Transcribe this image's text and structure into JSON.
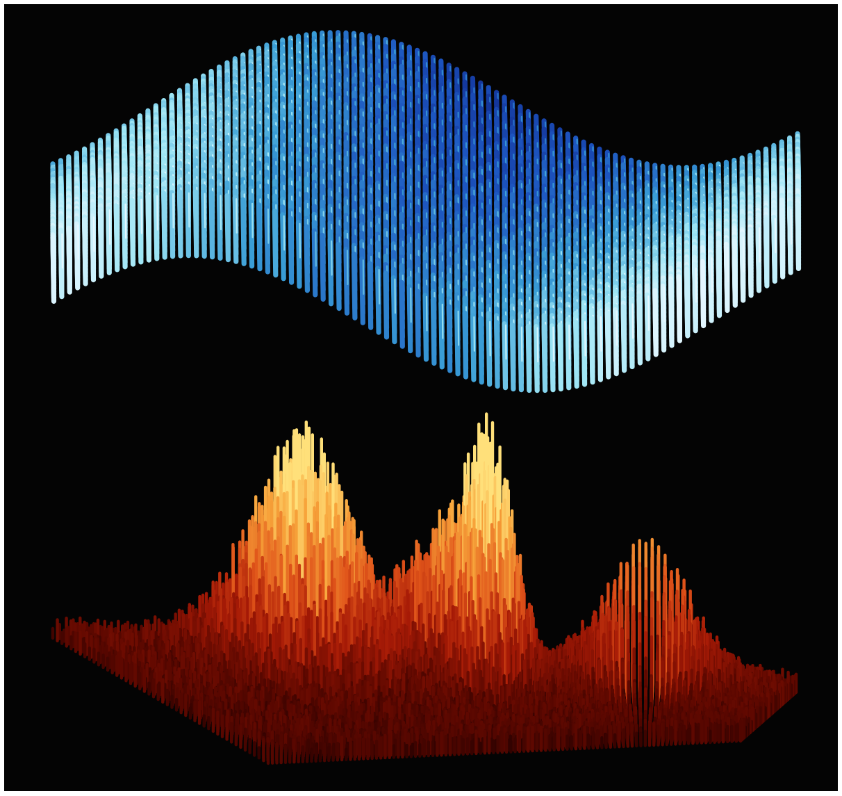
{
  "image": {
    "background_color": "#040404",
    "border_color": "#ffffff"
  },
  "surfaces": [
    {
      "name": "wave-surface",
      "palette": [
        "#0d1f80",
        "#1d55c0",
        "#3a9ed6",
        "#9fe6f5",
        "#e6f7ff"
      ]
    },
    {
      "name": "peaks-surface",
      "palette": [
        "#220000",
        "#5e0800",
        "#a61a06",
        "#e0541a",
        "#f7a33a",
        "#ffe07a"
      ]
    }
  ]
}
